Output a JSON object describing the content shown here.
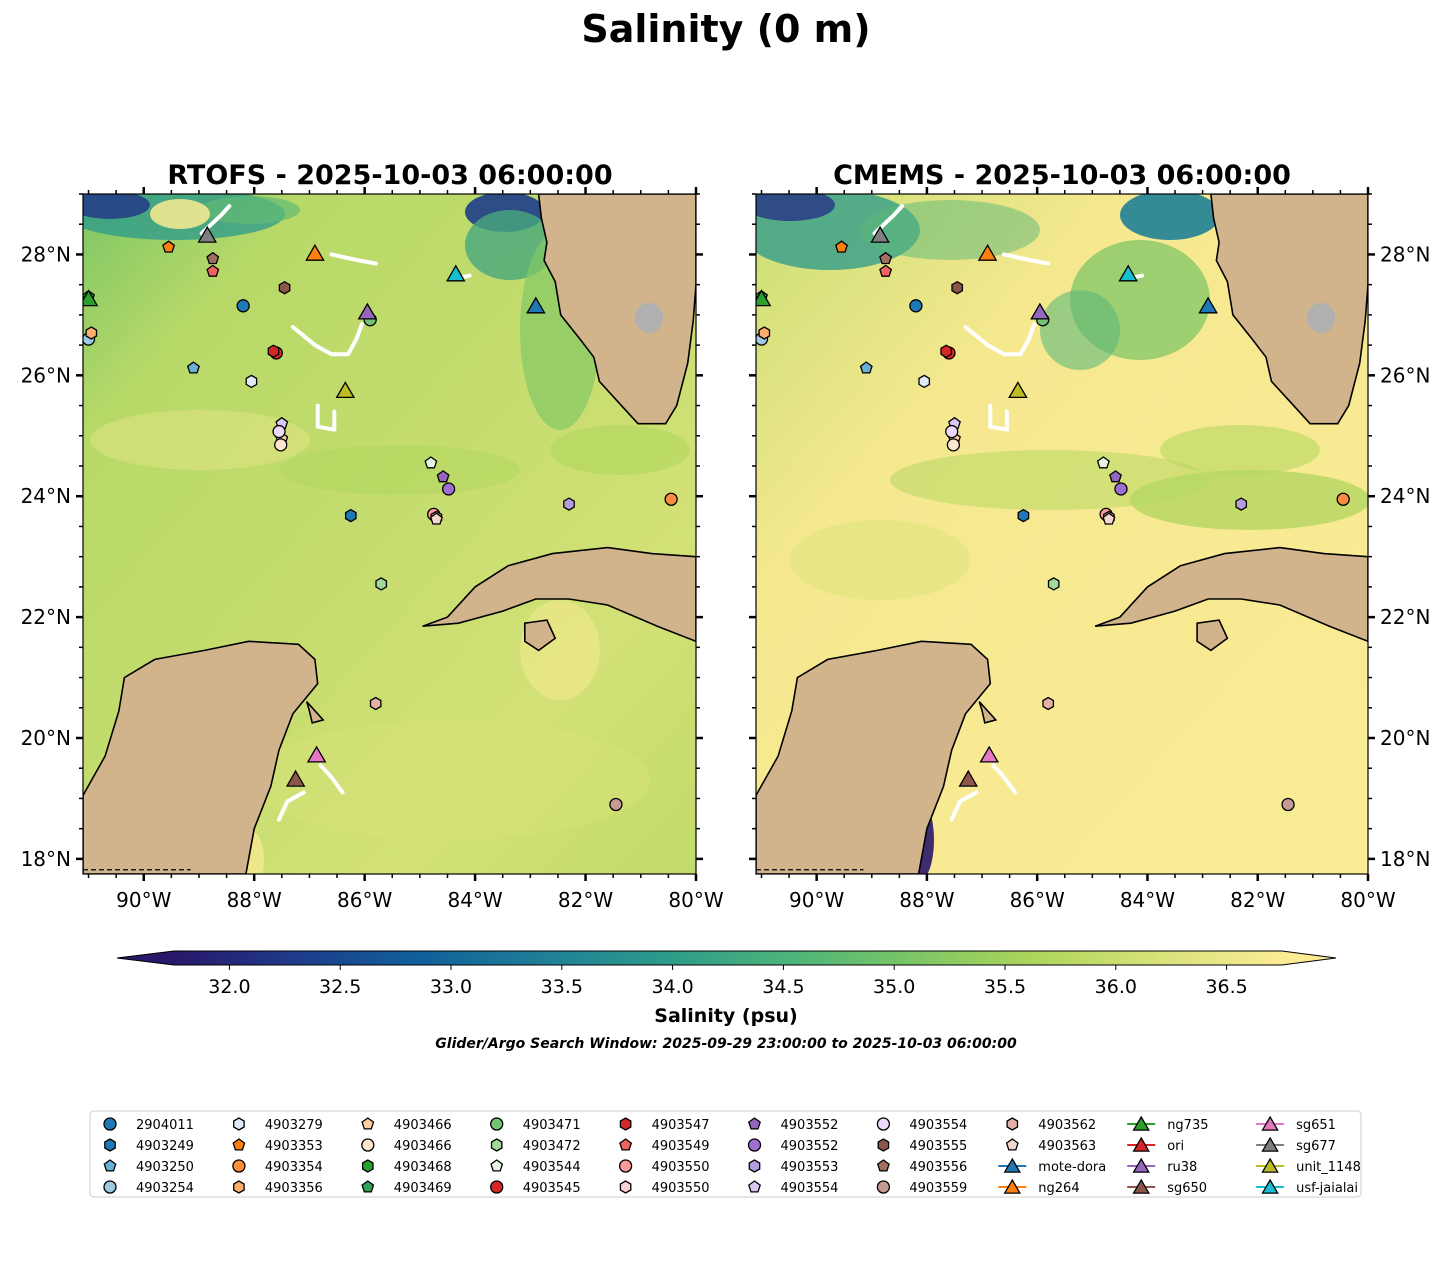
{
  "figure": {
    "title": "Salinity (0 m)",
    "search_window": "Glider/Argo Search Window: 2025-09-29 23:00:00 to 2025-10-03 06:00:00"
  },
  "panels": [
    {
      "id": "rtofs",
      "title": "RTOFS - 2025-10-03 06:00:00",
      "lat_labels_side": "left"
    },
    {
      "id": "cmems",
      "title": "CMEMS - 2025-10-03 06:00:00",
      "lat_labels_side": "right"
    }
  ],
  "map_extent": {
    "lon_min": -91.1,
    "lon_max": -80.0,
    "lat_min": 17.75,
    "lat_max": 29.0
  },
  "lon_ticks": [
    {
      "value": -90,
      "label": "90°W"
    },
    {
      "value": -88,
      "label": "88°W"
    },
    {
      "value": -86,
      "label": "86°W"
    },
    {
      "value": -84,
      "label": "84°W"
    },
    {
      "value": -82,
      "label": "82°W"
    },
    {
      "value": -80,
      "label": "80°W"
    }
  ],
  "lat_ticks": [
    {
      "value": 18,
      "label": "18°N"
    },
    {
      "value": 20,
      "label": "20°N"
    },
    {
      "value": 22,
      "label": "22°N"
    },
    {
      "value": 24,
      "label": "24°N"
    },
    {
      "value": 26,
      "label": "26°N"
    },
    {
      "value": 28,
      "label": "28°N"
    }
  ],
  "colorbar": {
    "label": "Salinity (psu)",
    "min": 31.75,
    "max": 36.75,
    "extend": "both",
    "ticks": [
      "32.0",
      "32.5",
      "33.0",
      "33.5",
      "34.0",
      "34.5",
      "35.0",
      "35.5",
      "36.0",
      "36.5"
    ],
    "colormap": [
      "#29176b",
      "#1e3c8a",
      "#10609b",
      "#1f7f96",
      "#2d9b8a",
      "#4cb47a",
      "#7cc665",
      "#aed55c",
      "#d8e37a",
      "#fbeb95"
    ]
  },
  "colors": {
    "land": "#d2b48c",
    "lake": "#9fb9e3",
    "track": "#ffffff",
    "rtofs_ocean": "#b2d663",
    "cmems_ocean": "#f5e88f"
  },
  "observations": [
    {
      "id": "2904011",
      "marker": "circle",
      "color": "#1f77b4",
      "lon": -88.2,
      "lat": 27.15
    },
    {
      "id": "4903249",
      "marker": "hexagon",
      "color": "#1f77b4",
      "lon": -86.25,
      "lat": 23.68
    },
    {
      "id": "4903250",
      "marker": "pentagon",
      "color": "#6baed6",
      "lon": -89.1,
      "lat": 26.12
    },
    {
      "id": "4903254",
      "marker": "circle",
      "color": "#9ecae1",
      "lon": -91.0,
      "lat": 26.6
    },
    {
      "id": "4903279",
      "marker": "hexagon",
      "color": "#deebf7",
      "lon": -88.05,
      "lat": 25.9
    },
    {
      "id": "4903353",
      "marker": "pentagon",
      "color": "#ff7f0e",
      "lon": -89.55,
      "lat": 28.12
    },
    {
      "id": "4903354",
      "marker": "circle",
      "color": "#fd8d3c",
      "lon": -80.45,
      "lat": 23.95
    },
    {
      "id": "4903356",
      "marker": "hexagon",
      "color": "#fdae6b",
      "lon": -90.95,
      "lat": 26.7
    },
    {
      "id": "4903466",
      "marker": "pentagon",
      "color": "#fdd0a2",
      "lon": -87.5,
      "lat": 24.95
    },
    {
      "id": "4903466",
      "marker": "circle",
      "color": "#fee6ce",
      "lon": -87.52,
      "lat": 24.85
    },
    {
      "id": "4903468",
      "marker": "hexagon",
      "color": "#2ca02c",
      "lon": -85.9,
      "lat": 26.92
    },
    {
      "id": "4903469",
      "marker": "pentagon",
      "color": "#31a354",
      "lon": -91.0,
      "lat": 27.3
    },
    {
      "id": "4903471",
      "marker": "circle",
      "color": "#74c476",
      "lon": -85.9,
      "lat": 26.92
    },
    {
      "id": "4903472",
      "marker": "hexagon",
      "color": "#a1d99b",
      "lon": -85.7,
      "lat": 22.55
    },
    {
      "id": "4903544",
      "marker": "pentagon",
      "color": "#e5f5e0",
      "lon": -84.8,
      "lat": 24.55
    },
    {
      "id": "4903545",
      "marker": "circle",
      "color": "#d62728",
      "lon": -87.6,
      "lat": 26.37
    },
    {
      "id": "4903547",
      "marker": "hexagon",
      "color": "#d62728",
      "lon": -87.65,
      "lat": 26.4
    },
    {
      "id": "4903549",
      "marker": "pentagon",
      "color": "#f16363",
      "lon": -88.75,
      "lat": 27.72
    },
    {
      "id": "4903550",
      "marker": "circle",
      "color": "#fc9a9a",
      "lon": -84.75,
      "lat": 23.7
    },
    {
      "id": "4903550",
      "marker": "hexagon",
      "color": "#fdd0d0",
      "lon": -84.7,
      "lat": 23.65
    },
    {
      "id": "4903552",
      "marker": "pentagon",
      "color": "#9467bd",
      "lon": -84.58,
      "lat": 24.32
    },
    {
      "id": "4903552",
      "marker": "circle",
      "color": "#9e6fd0",
      "lon": -84.48,
      "lat": 24.12
    },
    {
      "id": "4903553",
      "marker": "hexagon",
      "color": "#b39ddb",
      "lon": -82.3,
      "lat": 23.87
    },
    {
      "id": "4903554",
      "marker": "pentagon",
      "color": "#dcc6f2",
      "lon": -87.5,
      "lat": 25.2
    },
    {
      "id": "4903554",
      "marker": "circle",
      "color": "#ead7fa",
      "lon": -87.55,
      "lat": 25.07
    },
    {
      "id": "4903555",
      "marker": "hexagon",
      "color": "#8c564b",
      "lon": -87.45,
      "lat": 27.45
    },
    {
      "id": "4903556",
      "marker": "pentagon",
      "color": "#a0705f",
      "lon": -88.75,
      "lat": 27.93
    },
    {
      "id": "4903559",
      "marker": "circle",
      "color": "#c49c94",
      "lon": -81.45,
      "lat": 18.9
    },
    {
      "id": "4903562",
      "marker": "hexagon",
      "color": "#e3b1a5",
      "lon": -85.8,
      "lat": 20.57
    },
    {
      "id": "4903563",
      "marker": "pentagon",
      "color": "#f4d7cf",
      "lon": -84.7,
      "lat": 23.62
    },
    {
      "id": "mote-dora",
      "marker": "triangle",
      "color": "#1f77b4",
      "lon": -82.9,
      "lat": 27.15
    },
    {
      "id": "ng264",
      "marker": "triangle",
      "color": "#ff7f0e",
      "lon": -86.9,
      "lat": 28.02
    },
    {
      "id": "ng735",
      "marker": "triangle",
      "color": "#2ca02c",
      "lon": -91.0,
      "lat": 27.27
    },
    {
      "id": "ori",
      "marker": "triangle",
      "color": "#d62728",
      "lon": null,
      "lat": null
    },
    {
      "id": "ru38",
      "marker": "triangle",
      "color": "#9467bd",
      "lon": -85.95,
      "lat": 27.05
    },
    {
      "id": "sg650",
      "marker": "triangle",
      "color": "#8c564b",
      "lon": -87.25,
      "lat": 19.32
    },
    {
      "id": "sg651",
      "marker": "triangle",
      "color": "#e377c2",
      "lon": -86.87,
      "lat": 19.72
    },
    {
      "id": "sg677",
      "marker": "triangle",
      "color": "#7f7f7f",
      "lon": -88.85,
      "lat": 28.32
    },
    {
      "id": "unit_1148",
      "marker": "triangle",
      "color": "#bcbd22",
      "lon": -86.35,
      "lat": 25.75
    },
    {
      "id": "usf-jaialai",
      "marker": "triangle",
      "color": "#17becf",
      "lon": -84.35,
      "lat": 27.68
    }
  ],
  "legend_columns": [
    [
      "2904011",
      "4903249",
      "4903250",
      "4903254"
    ],
    [
      "4903279",
      "4903353",
      "4903354",
      "4903356"
    ],
    [
      "4903466",
      "4903466",
      "4903468",
      "4903469"
    ],
    [
      "4903471",
      "4903472",
      "4903544",
      "4903545"
    ],
    [
      "4903547",
      "4903549",
      "4903550",
      "4903550"
    ],
    [
      "4903552",
      "4903552",
      "4903553",
      "4903554"
    ],
    [
      "4903554",
      "4903555",
      "4903556",
      "4903559"
    ],
    [
      "4903562",
      "4903563",
      "mote-dora",
      "ng264"
    ],
    [
      "ng735",
      "ori",
      "ru38",
      "sg650"
    ],
    [
      "sg651",
      "sg677",
      "unit_1148",
      "usf-jaialai"
    ]
  ]
}
